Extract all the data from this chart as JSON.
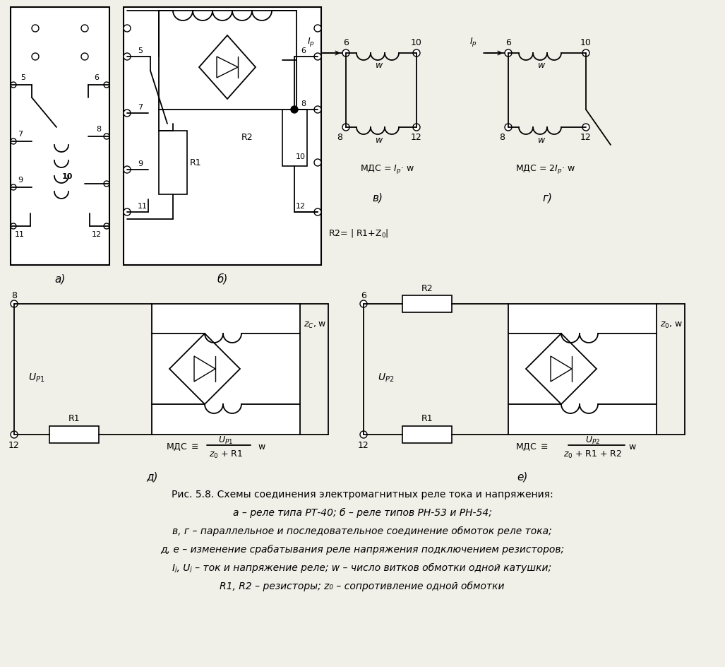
{
  "bg_color": "#f0efe8",
  "line_color": "#000000",
  "caption_line1": "Рис. 5.8. Схемы соединения электромагнитных реле тока и напряжения:",
  "caption_line2": "а – реле типа РТ-40; б – реле типов РН-53 и РН-54;",
  "caption_line3": "в, г – параллельное и последовательное соединение обмоток реле тока;",
  "caption_line4": "д, е – изменение срабатывания реле напряжения подключением резисторов;",
  "caption_line5": "Iⱼ, Uⱼ – ток и напряжение реле; w – число витков обмотки одной катушки;",
  "caption_line6": "R1, R2 – резисторы; z₀ – сопротивление одной обмотки"
}
